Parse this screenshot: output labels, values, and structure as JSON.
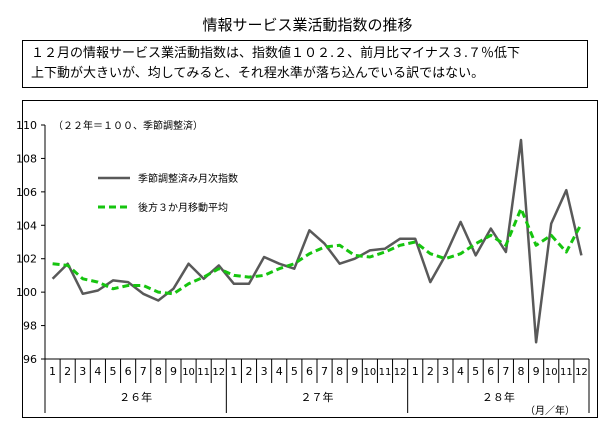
{
  "header": {
    "title": "情報サービス業活動指数の推移",
    "summary_lines": [
      "１２月の情報サービス業活動指数は、指数値１０２.２、前月比マイナス３.７％低下",
      "上下動が大きいが、均してみると、それ程水準が落ち込んでいる訳ではない。"
    ]
  },
  "chart_data": {
    "type": "line",
    "base_note": "（２２年＝１００、季節調整済）",
    "unit_note": "（月／年）",
    "ylim": [
      96,
      110
    ],
    "yticks": [
      96,
      98,
      100,
      102,
      104,
      106,
      108,
      110
    ],
    "categories": [
      "1",
      "2",
      "3",
      "4",
      "5",
      "6",
      "7",
      "8",
      "9",
      "10",
      "11",
      "12",
      "1",
      "2",
      "3",
      "4",
      "5",
      "6",
      "7",
      "8",
      "9",
      "10",
      "11",
      "12",
      "1",
      "2",
      "3",
      "4",
      "5",
      "6",
      "7",
      "8",
      "9",
      "10",
      "11",
      "12"
    ],
    "year_groups": [
      {
        "label": "２６年",
        "start": 0,
        "end": 11
      },
      {
        "label": "２７年",
        "start": 12,
        "end": 23
      },
      {
        "label": "２８年",
        "start": 24,
        "end": 35
      }
    ],
    "legend_position": "upper-left",
    "series": [
      {
        "name": "季節調整済み月次指数",
        "color": "#595959",
        "style": "solid",
        "values": [
          100.8,
          101.7,
          99.9,
          100.1,
          100.7,
          100.6,
          99.9,
          99.5,
          100.2,
          101.7,
          100.8,
          101.6,
          100.5,
          100.5,
          102.1,
          101.7,
          101.4,
          103.7,
          102.9,
          101.7,
          102.0,
          102.5,
          102.6,
          103.2,
          103.2,
          100.6,
          102.2,
          104.2,
          102.2,
          103.8,
          102.4,
          109.1,
          97.0,
          104.1,
          106.1,
          102.2
        ]
      },
      {
        "name": "後方３か月移動平均",
        "color": "#16C40F",
        "style": "dashed",
        "values": [
          101.7,
          101.6,
          100.8,
          100.6,
          100.2,
          100.4,
          100.4,
          100.0,
          99.9,
          100.5,
          100.9,
          101.4,
          101.0,
          100.9,
          101.0,
          101.4,
          101.7,
          102.3,
          102.7,
          102.8,
          102.2,
          102.1,
          102.4,
          102.8,
          103.0,
          102.3,
          102.0,
          102.3,
          102.9,
          103.4,
          102.8,
          105.0,
          102.8,
          103.4,
          102.4,
          104.1
        ]
      }
    ]
  }
}
